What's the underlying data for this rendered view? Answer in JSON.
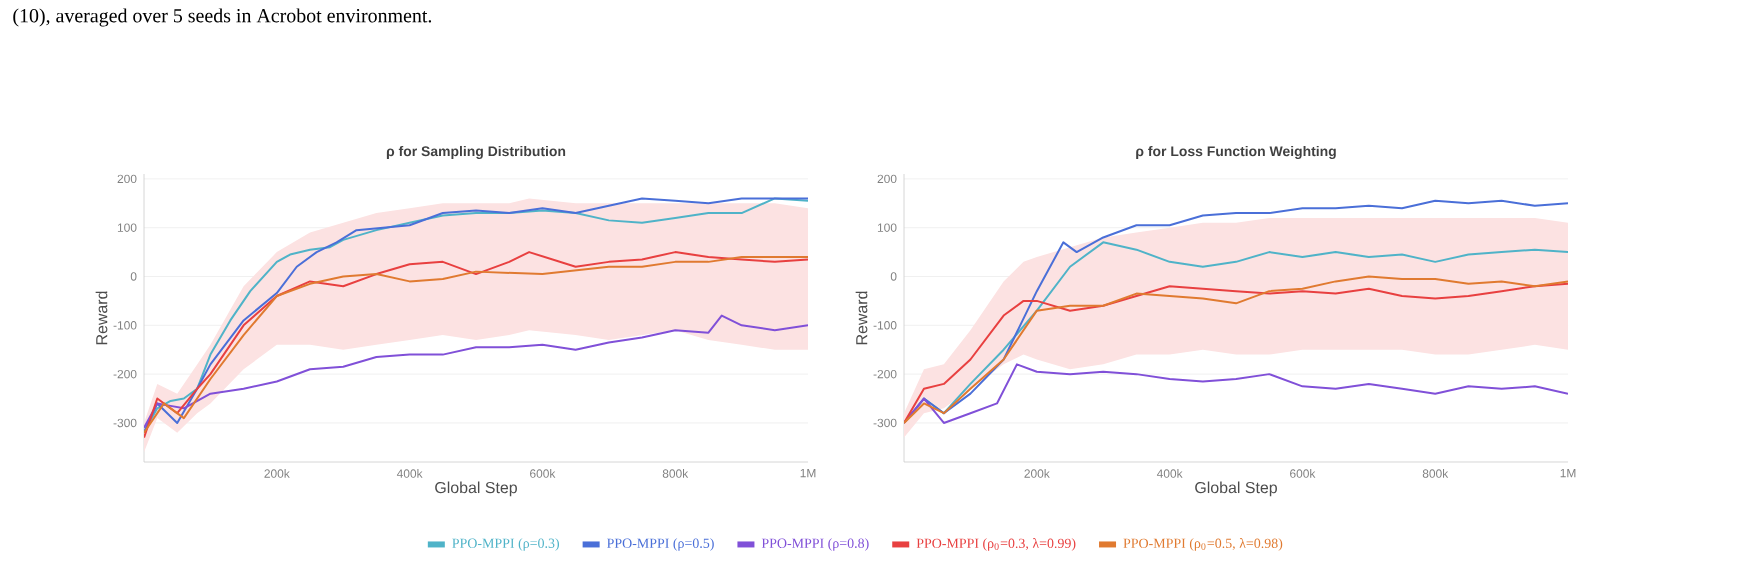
{
  "chart_data": [
    {
      "type": "line",
      "title": "ρ for Sampling Distribution",
      "xlabel": "Global Step",
      "ylabel": "Reward",
      "annotations": [
        "(10), averaged over 5 seeds in Acrobot environment."
      ],
      "xlim": [
        0,
        1000000
      ],
      "ylim": [
        -380,
        210
      ],
      "xticks": [
        {
          "value": 200000,
          "label": "200k"
        },
        {
          "value": 400000,
          "label": "400k"
        },
        {
          "value": 600000,
          "label": "600k"
        },
        {
          "value": 800000,
          "label": "800k"
        },
        {
          "value": 1000000,
          "label": "1M"
        }
      ],
      "yticks": [
        -300,
        -200,
        -100,
        0,
        100,
        200
      ],
      "grid": "y",
      "legend": "bottom",
      "line_style": "solid",
      "series": [
        {
          "name": "PPO-MPPI (ρ=0.3)",
          "color": "#4fb3c8",
          "x": [
            0,
            20000,
            40000,
            60000,
            80000,
            100000,
            130000,
            160000,
            200000,
            220000,
            250000,
            280000,
            300000,
            350000,
            400000,
            450000,
            500000,
            550000,
            600000,
            650000,
            700000,
            750000,
            800000,
            850000,
            900000,
            950000,
            1000000
          ],
          "values": [
            -318,
            -270,
            -255,
            -250,
            -230,
            -160,
            -90,
            -30,
            30,
            45,
            55,
            60,
            75,
            95,
            110,
            125,
            130,
            130,
            135,
            130,
            115,
            110,
            120,
            130,
            130,
            160,
            155
          ]
        },
        {
          "name": "PPO-MPPI (ρ=0.5)",
          "color": "#4a6fd8",
          "x": [
            0,
            20000,
            50000,
            80000,
            100000,
            150000,
            200000,
            230000,
            260000,
            290000,
            320000,
            400000,
            450000,
            500000,
            550000,
            600000,
            650000,
            700000,
            750000,
            800000,
            850000,
            900000,
            950000,
            1000000
          ],
          "values": [
            -320,
            -260,
            -300,
            -230,
            -180,
            -90,
            -34,
            20,
            50,
            70,
            95,
            105,
            130,
            135,
            130,
            140,
            130,
            145,
            160,
            155,
            150,
            160,
            160,
            160
          ]
        },
        {
          "name": "PPO-MPPI (ρ=0.8)",
          "color": "#8050d8",
          "x": [
            0,
            20000,
            40000,
            60000,
            80000,
            100000,
            150000,
            200000,
            250000,
            300000,
            350000,
            400000,
            450000,
            500000,
            550000,
            600000,
            650000,
            700000,
            750000,
            800000,
            850000,
            870000,
            900000,
            950000,
            1000000
          ],
          "values": [
            -310,
            -260,
            -265,
            -270,
            -255,
            -240,
            -230,
            -215,
            -190,
            -185,
            -165,
            -160,
            -160,
            -145,
            -145,
            -140,
            -150,
            -135,
            -125,
            -110,
            -115,
            -80,
            -100,
            -110,
            -100
          ]
        },
        {
          "name": "PPO-MPPI (ρ$_{0}$=0.3, λ=0.99)",
          "color": "#e84040",
          "x": [
            0,
            20000,
            50000,
            80000,
            100000,
            150000,
            200000,
            250000,
            300000,
            350000,
            400000,
            450000,
            500000,
            550000,
            580000,
            650000,
            700000,
            750000,
            800000,
            850000,
            900000,
            950000,
            1000000
          ],
          "values": [
            -330,
            -250,
            -280,
            -230,
            -200,
            -100,
            -40,
            -10,
            -20,
            5,
            25,
            30,
            5,
            30,
            50,
            20,
            30,
            35,
            50,
            40,
            35,
            30,
            35
          ],
          "upper": [
            -300,
            -220,
            -240,
            -180,
            -140,
            -20,
            50,
            90,
            110,
            130,
            140,
            150,
            150,
            150,
            160,
            150,
            150,
            150,
            150,
            150,
            150,
            150,
            140
          ],
          "lower": [
            -360,
            -290,
            -320,
            -280,
            -260,
            -190,
            -140,
            -140,
            -150,
            -140,
            -130,
            -120,
            -130,
            -120,
            -110,
            -120,
            -130,
            -120,
            -110,
            -130,
            -140,
            -150,
            -150
          ]
        },
        {
          "name": "PPO-MPPI (ρ$_{0}$=0.5, λ=0.98)",
          "color": "#e07a30",
          "x": [
            0,
            30000,
            60000,
            100000,
            150000,
            200000,
            250000,
            300000,
            350000,
            400000,
            450000,
            500000,
            600000,
            700000,
            750000,
            800000,
            850000,
            900000,
            950000,
            1000000
          ],
          "values": [
            -320,
            -260,
            -290,
            -210,
            -120,
            -40,
            -15,
            0,
            5,
            -10,
            -5,
            10,
            5,
            20,
            20,
            30,
            30,
            40,
            40,
            40
          ]
        }
      ]
    },
    {
      "type": "line",
      "title": "ρ for Loss Function Weighting",
      "xlabel": "Global Step",
      "ylabel": "Reward",
      "xlim": [
        0,
        1000000
      ],
      "ylim": [
        -380,
        210
      ],
      "xticks": [
        {
          "value": 200000,
          "label": "200k"
        },
        {
          "value": 400000,
          "label": "400k"
        },
        {
          "value": 600000,
          "label": "600k"
        },
        {
          "value": 800000,
          "label": "800k"
        },
        {
          "value": 1000000,
          "label": "1M"
        }
      ],
      "yticks": [
        -300,
        -200,
        -100,
        0,
        100,
        200
      ],
      "grid": "y",
      "line_style": "solid",
      "series": [
        {
          "color": "#4fb3c8",
          "x": [
            0,
            30000,
            60000,
            100000,
            150000,
            200000,
            250000,
            300000,
            350000,
            400000,
            450000,
            500000,
            550000,
            600000,
            650000,
            700000,
            750000,
            800000,
            850000,
            900000,
            950000,
            1000000
          ],
          "values": [
            -300,
            -250,
            -280,
            -220,
            -150,
            -70,
            20,
            70,
            55,
            30,
            20,
            30,
            50,
            40,
            50,
            40,
            45,
            30,
            45,
            50,
            55,
            50
          ]
        },
        {
          "color": "#4a6fd8",
          "x": [
            0,
            30000,
            60000,
            100000,
            150000,
            200000,
            240000,
            260000,
            300000,
            350000,
            400000,
            450000,
            500000,
            550000,
            600000,
            650000,
            700000,
            750000,
            800000,
            850000,
            900000,
            950000,
            1000000
          ],
          "values": [
            -300,
            -250,
            -280,
            -240,
            -170,
            -30,
            70,
            50,
            80,
            105,
            105,
            125,
            130,
            130,
            140,
            140,
            145,
            140,
            155,
            150,
            155,
            145,
            150
          ]
        },
        {
          "color": "#8050d8",
          "x": [
            0,
            30000,
            60000,
            100000,
            140000,
            170000,
            200000,
            250000,
            300000,
            350000,
            400000,
            450000,
            500000,
            550000,
            600000,
            650000,
            700000,
            750000,
            800000,
            850000,
            900000,
            950000,
            1000000
          ],
          "values": [
            -300,
            -250,
            -300,
            -280,
            -260,
            -180,
            -195,
            -200,
            -195,
            -200,
            -210,
            -215,
            -210,
            -200,
            -225,
            -230,
            -220,
            -230,
            -240,
            -225,
            -230,
            -225,
            -240
          ]
        },
        {
          "color": "#e84040",
          "x": [
            0,
            30000,
            60000,
            100000,
            150000,
            180000,
            200000,
            250000,
            300000,
            350000,
            400000,
            450000,
            500000,
            550000,
            600000,
            650000,
            700000,
            750000,
            800000,
            850000,
            900000,
            950000,
            1000000
          ],
          "values": [
            -300,
            -230,
            -220,
            -170,
            -80,
            -50,
            -50,
            -70,
            -60,
            -40,
            -20,
            -25,
            -30,
            -35,
            -30,
            -35,
            -25,
            -40,
            -45,
            -40,
            -30,
            -20,
            -15
          ],
          "upper": [
            -280,
            -190,
            -180,
            -110,
            -10,
            30,
            40,
            60,
            80,
            90,
            100,
            110,
            110,
            120,
            120,
            120,
            120,
            120,
            120,
            120,
            120,
            120,
            110
          ],
          "lower": [
            -330,
            -280,
            -270,
            -230,
            -180,
            -160,
            -170,
            -190,
            -180,
            -160,
            -160,
            -150,
            -160,
            -160,
            -150,
            -150,
            -150,
            -150,
            -160,
            -160,
            -150,
            -140,
            -150
          ]
        },
        {
          "color": "#e07a30",
          "x": [
            0,
            30000,
            60000,
            100000,
            150000,
            200000,
            250000,
            300000,
            350000,
            400000,
            450000,
            500000,
            550000,
            600000,
            650000,
            700000,
            750000,
            800000,
            850000,
            900000,
            950000,
            1000000
          ],
          "values": [
            -300,
            -260,
            -280,
            -230,
            -170,
            -70,
            -60,
            -60,
            -35,
            -40,
            -45,
            -55,
            -30,
            -25,
            -10,
            0,
            -5,
            -5,
            -15,
            -10,
            -20,
            -10
          ]
        }
      ]
    }
  ]
}
